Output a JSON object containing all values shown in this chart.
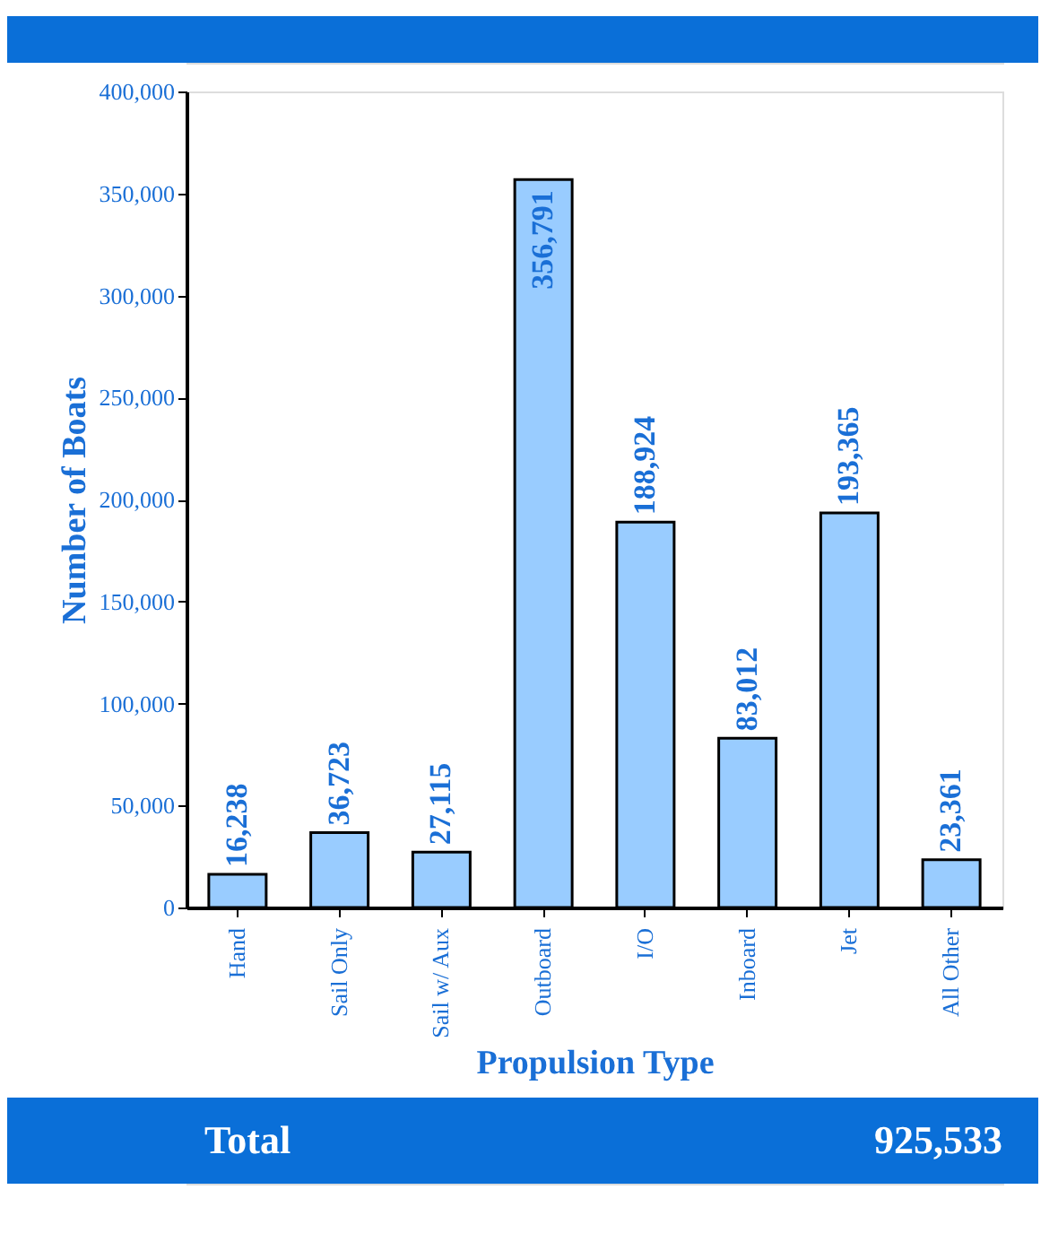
{
  "chart_data": {
    "type": "bar",
    "xlabel": "Propulsion Type",
    "ylabel": "Number of Boats",
    "categories": [
      "Hand",
      "Sail Only",
      "Sail w/ Aux",
      "Outboard",
      "I/O",
      "Inboard",
      "Jet",
      "All Other"
    ],
    "values": [
      16238,
      36723,
      27115,
      356791,
      188924,
      83012,
      193365,
      23361
    ],
    "value_labels": [
      "16,238",
      "36,723",
      "27,115",
      "356,791",
      "188,924",
      "83,012",
      "193,365",
      "23,361"
    ],
    "color": "#99ccff",
    "ylim": [
      0,
      400000
    ],
    "yticks": [
      {
        "value": 0,
        "label": "0"
      },
      {
        "value": 50000,
        "label": "50,000"
      },
      {
        "value": 100000,
        "label": "100,000"
      },
      {
        "value": 150000,
        "label": "150,000"
      },
      {
        "value": 200000,
        "label": "200,000"
      },
      {
        "value": 250000,
        "label": "250,000"
      },
      {
        "value": 300000,
        "label": "300,000"
      },
      {
        "value": 350000,
        "label": "350,000"
      },
      {
        "value": 400000,
        "label": "400,000"
      }
    ],
    "grid": false,
    "annotations": [
      "Total",
      "925,533"
    ]
  }
}
